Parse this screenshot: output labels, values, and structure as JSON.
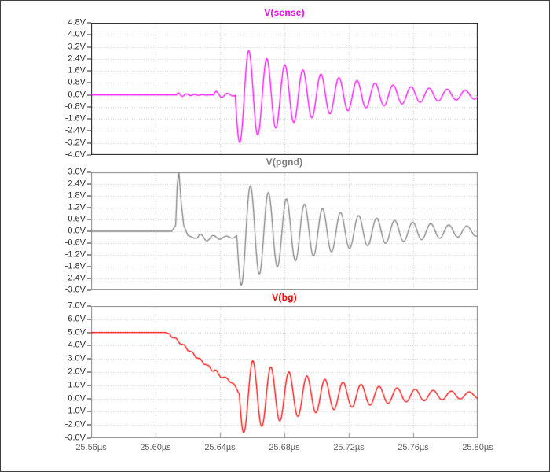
{
  "style": {
    "background": "#ffffff",
    "frame_border": "#3f3f3f",
    "grid_color": "#c4c4c4",
    "y_label_color": "#2b2b2b",
    "x_label_color": "#5f5f5f"
  },
  "x_axis": {
    "unit": "µs",
    "range_us": [
      25.56,
      25.8
    ],
    "ticks": [
      {
        "t": 25.56,
        "label": "25.56µs"
      },
      {
        "t": 25.6,
        "label": "25.60µs"
      },
      {
        "t": 25.64,
        "label": "25.64µs"
      },
      {
        "t": 25.68,
        "label": "25.68µs"
      },
      {
        "t": 25.72,
        "label": "25.72µs"
      },
      {
        "t": 25.76,
        "label": "25.76µs"
      },
      {
        "t": 25.8,
        "label": "25.80µs"
      }
    ]
  },
  "chart_data": [
    {
      "type": "line",
      "title": "V(sense)",
      "color": "#ff00ff",
      "border_color": "#1a1a1a",
      "x_tick_marks": false,
      "x_range_us": [
        25.56,
        25.8
      ],
      "y_range_v": [
        -4.0,
        4.8
      ],
      "y_ticks": [
        {
          "v": 4.8,
          "label": "4.8V"
        },
        {
          "v": 4.0,
          "label": "4.0V"
        },
        {
          "v": 3.2,
          "label": "3.2V"
        },
        {
          "v": 2.4,
          "label": "2.4V"
        },
        {
          "v": 1.6,
          "label": "1.6V"
        },
        {
          "v": 0.8,
          "label": "0.8V"
        },
        {
          "v": 0.0,
          "label": "0.0V"
        },
        {
          "v": -0.8,
          "label": "-0.8V"
        },
        {
          "v": -1.6,
          "label": "-1.6V"
        },
        {
          "v": -2.4,
          "label": "-2.4V"
        },
        {
          "v": -3.2,
          "label": "-3.2V"
        },
        {
          "v": -4.0,
          "label": "-4.0V"
        }
      ],
      "series": [
        {
          "name": "V(sense)",
          "color": "#ff00ff",
          "signal_model": {
            "base_points": [
              [
                25.56,
                0.0
              ],
              [
                25.8,
                0.0
              ]
            ],
            "damped_sines": [
              {
                "t0": 25.613,
                "amp": 0.16,
                "period_us": 0.005,
                "tau_us": 0.007,
                "phase_deg": 0
              },
              {
                "t0": 25.636,
                "amp": 0.28,
                "period_us": 0.007,
                "tau_us": 0.009,
                "phase_deg": 0
              },
              {
                "t0": 25.6495,
                "amp": 3.35,
                "period_us": 0.0112,
                "tau_us": 0.06,
                "phase_deg": 180
              }
            ]
          },
          "read_values": {
            "flat_level_v": 0.0,
            "ring_start_us": 25.65,
            "max_v": 2.6,
            "min_v": -3.3,
            "end_ripple_v": 0.3
          }
        }
      ]
    },
    {
      "type": "line",
      "title": "V(pgnd)",
      "color": "#7f7f7f",
      "border_color": "#8c8c8c",
      "x_tick_marks": false,
      "x_range_us": [
        25.56,
        25.8
      ],
      "y_range_v": [
        -3.0,
        3.0
      ],
      "y_ticks": [
        {
          "v": 3.0,
          "label": "3.0V"
        },
        {
          "v": 2.4,
          "label": "2.4V"
        },
        {
          "v": 1.8,
          "label": "1.8V"
        },
        {
          "v": 1.2,
          "label": "1.2V"
        },
        {
          "v": 0.6,
          "label": "0.6V"
        },
        {
          "v": 0.0,
          "label": "0.0V"
        },
        {
          "v": -0.6,
          "label": "-0.6V"
        },
        {
          "v": -1.2,
          "label": "-1.2V"
        },
        {
          "v": -1.8,
          "label": "-1.8V"
        },
        {
          "v": -2.4,
          "label": "-2.4V"
        },
        {
          "v": -3.0,
          "label": "-3.0V"
        }
      ],
      "series": [
        {
          "name": "V(pgnd)",
          "color": "#7f7f7f",
          "signal_model": {
            "base_points": [
              [
                25.56,
                0.0
              ],
              [
                25.61,
                0.0
              ],
              [
                25.6125,
                0.3
              ],
              [
                25.6135,
                2.4
              ],
              [
                25.6145,
                3.0
              ],
              [
                25.616,
                1.4
              ],
              [
                25.6175,
                0.3
              ],
              [
                25.62,
                -0.2
              ],
              [
                25.624,
                -0.35
              ],
              [
                25.648,
                -0.3
              ],
              [
                25.656,
                -0.1
              ],
              [
                25.664,
                0.0
              ],
              [
                25.8,
                0.0
              ]
            ],
            "damped_sines": [
              {
                "t0": 25.626,
                "amp": 0.22,
                "period_us": 0.008,
                "tau_us": 0.015,
                "phase_deg": 0
              },
              {
                "t0": 25.6505,
                "amp": 2.7,
                "period_us": 0.0112,
                "tau_us": 0.062,
                "phase_deg": 180
              }
            ]
          },
          "read_values": {
            "flat_level_v": 0.0,
            "spike_us": 25.614,
            "spike_peak_v": 3.0,
            "ring_start_us": 25.65,
            "max_v": 2.7,
            "min_v": -2.4
          }
        }
      ]
    },
    {
      "type": "line",
      "title": "V(bg)",
      "color": "#ff0000",
      "border_color": "#8c8c8c",
      "x_tick_marks": true,
      "x_range_us": [
        25.56,
        25.8
      ],
      "y_range_v": [
        -3.0,
        7.0
      ],
      "y_ticks": [
        {
          "v": 7.0,
          "label": "7.0V"
        },
        {
          "v": 6.0,
          "label": "6.0V"
        },
        {
          "v": 5.0,
          "label": "5.0V"
        },
        {
          "v": 4.0,
          "label": "4.0V"
        },
        {
          "v": 3.0,
          "label": "3.0V"
        },
        {
          "v": 2.0,
          "label": "2.0V"
        },
        {
          "v": 1.0,
          "label": "1.0V"
        },
        {
          "v": 0.0,
          "label": "0.0V"
        },
        {
          "v": -1.0,
          "label": "-1.0V"
        },
        {
          "v": -2.0,
          "label": "-2.0V"
        },
        {
          "v": -3.0,
          "label": "-3.0V"
        }
      ],
      "series": [
        {
          "name": "V(bg)",
          "color": "#ff0000",
          "signal_model": {
            "base_points": [
              [
                25.56,
                5.0
              ],
              [
                25.606,
                5.0
              ],
              [
                25.6085,
                4.9
              ],
              [
                25.61,
                4.62
              ],
              [
                25.613,
                4.55
              ],
              [
                25.615,
                4.15
              ],
              [
                25.618,
                4.05
              ],
              [
                25.62,
                3.62
              ],
              [
                25.623,
                3.52
              ],
              [
                25.625,
                3.1
              ],
              [
                25.628,
                3.0
              ],
              [
                25.63,
                2.6
              ],
              [
                25.633,
                2.5
              ],
              [
                25.635,
                2.1
              ],
              [
                25.638,
                2.0
              ],
              [
                25.641,
                1.65
              ],
              [
                25.645,
                1.45
              ],
              [
                25.6485,
                1.1
              ],
              [
                25.6515,
                0.45
              ],
              [
                25.6545,
                0.25
              ],
              [
                25.8,
                0.25
              ]
            ],
            "damped_sines": [
              {
                "t0": 25.636,
                "amp": 0.15,
                "period_us": 0.006,
                "tau_us": 0.012,
                "phase_deg": 0
              },
              {
                "t0": 25.652,
                "amp": 3.0,
                "period_us": 0.0112,
                "tau_us": 0.058,
                "phase_deg": 180
              }
            ]
          },
          "read_values": {
            "flat_level_v": 5.0,
            "fall_start_us": 25.607,
            "ring_start_us": 25.652,
            "max_v": 3.4,
            "min_v": -2.1,
            "settle_v": 0.25
          }
        }
      ]
    }
  ]
}
